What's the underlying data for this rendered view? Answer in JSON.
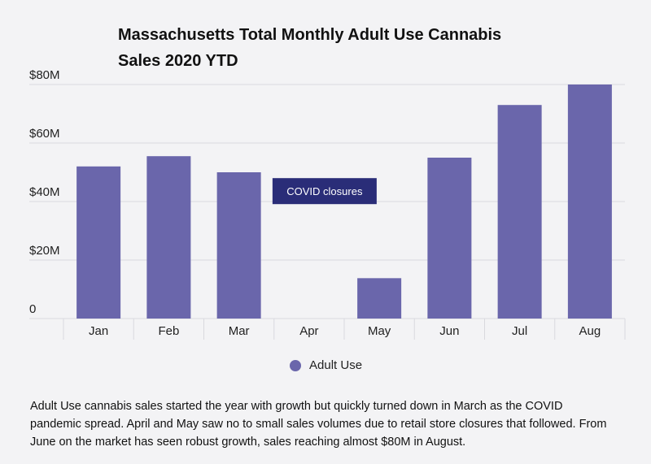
{
  "colors": {
    "bar": "#6a66ab",
    "annotation_bg": "#2a2d78",
    "annotation_text": "#ffffff",
    "grid": "#d9d9de",
    "axis_text": "#222222"
  },
  "chart_data": {
    "type": "bar",
    "title_line1": "Massachusetts Total Monthly Adult Use Cannabis",
    "title_line2": "Sales 2020 YTD",
    "categories": [
      "Jan",
      "Feb",
      "Mar",
      "Apr",
      "May",
      "Jun",
      "Jul",
      "Aug"
    ],
    "series": [
      {
        "name": "Adult Use",
        "values": [
          52.0,
          55.5,
          50.0,
          0,
          13.8,
          55.0,
          73.0,
          80.0
        ]
      }
    ],
    "ylim": [
      0,
      80
    ],
    "yticks": [
      0,
      20,
      40,
      60,
      80
    ],
    "ytick_labels": [
      "0",
      "$20M",
      "$40M",
      "$60M",
      "$80M"
    ],
    "y_unit": "millions USD",
    "xlabel": "",
    "ylabel": "",
    "grid": true,
    "legend_position": "bottom-center",
    "annotation": {
      "text": "COVID closures",
      "near_category": "Apr"
    }
  },
  "legend": {
    "label": "Adult Use"
  },
  "caption": "Adult Use cannabis sales started the year with growth but quickly turned down in March as the COVID pandemic spread.  April and May saw no to small sales volumes due to retail store closures that followed. From June on the market has seen robust growth, sales reaching almost $80M in August."
}
